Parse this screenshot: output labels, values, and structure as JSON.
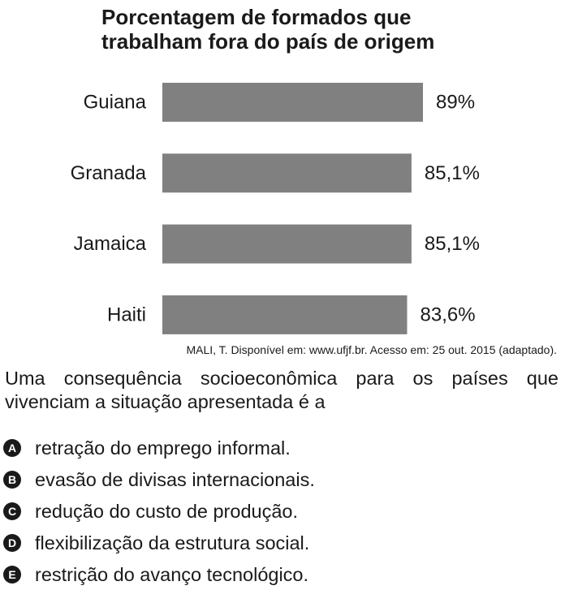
{
  "chart_data": {
    "type": "bar",
    "orientation": "horizontal",
    "title_lines": [
      "Porcentagem de formados que",
      "trabalham fora do país de origem"
    ],
    "categories": [
      "Guiana",
      "Granada",
      "Jamaica",
      "Haiti"
    ],
    "values": [
      89,
      85.1,
      85.1,
      83.6
    ],
    "value_labels": [
      "89%",
      "85,1%",
      "85,1%",
      "83,6%"
    ],
    "unit": "%",
    "xlim": [
      0,
      89
    ],
    "grid": false,
    "legend": "none",
    "bar_color": "#808080"
  },
  "source": "MALI, T. Disponível em: www.ufjf.br. Acesso em: 25 out. 2015 (adaptado).",
  "question": "Uma consequência socioeconômica para os países que vivenciam a situação apresentada é a",
  "options": [
    {
      "letter": "A",
      "text": "retração do emprego informal."
    },
    {
      "letter": "B",
      "text": "evasão de divisas internacionais."
    },
    {
      "letter": "C",
      "text": "redução do custo de produção."
    },
    {
      "letter": "D",
      "text": "flexibilização da estrutura social."
    },
    {
      "letter": "E",
      "text": "restrição do avanço tecnológico."
    }
  ]
}
